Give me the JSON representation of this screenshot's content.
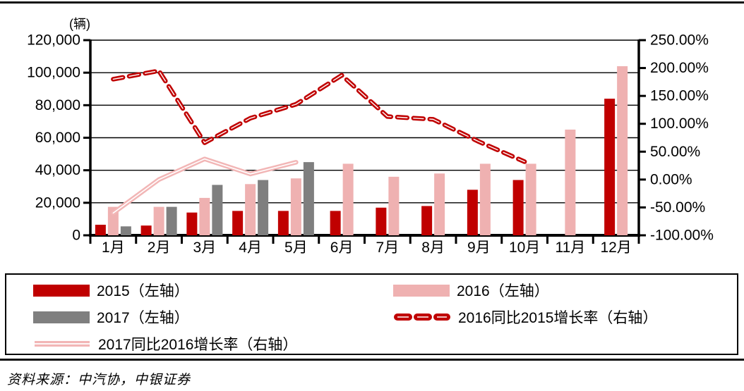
{
  "chart_data": {
    "type": "bar",
    "subtype": "grouped-bars-with-lines-dual-axis",
    "categories": [
      "1月",
      "2月",
      "3月",
      "4月",
      "5月",
      "6月",
      "7月",
      "8月",
      "9月",
      "10月",
      "11月",
      "12月"
    ],
    "unit_label": "(辆)",
    "left_axis": {
      "min": 0,
      "max": 120000,
      "tick_step": 20000,
      "tick_labels": [
        "0",
        "20,000",
        "40,000",
        "60,000",
        "80,000",
        "100,000",
        "120,000"
      ]
    },
    "right_axis": {
      "min": -100,
      "max": 250,
      "tick_step": 50,
      "tick_labels": [
        "-100.00%",
        "-50.00%",
        "0.00%",
        "50.00%",
        "100.00%",
        "150.00%",
        "200.00%",
        "250.00%"
      ]
    },
    "grid": true,
    "bar_series": [
      {
        "name": "2015（左轴）",
        "axis": "left",
        "color": "#C00000",
        "values": [
          6500,
          6000,
          14000,
          15000,
          15000,
          15000,
          17000,
          18000,
          28000,
          34000,
          null,
          84000
        ]
      },
      {
        "name": "2016（左轴）",
        "axis": "left",
        "color": "#EFB1B1",
        "values": [
          17500,
          17500,
          23000,
          31500,
          35000,
          44000,
          36000,
          38000,
          44000,
          44000,
          65000,
          104000
        ]
      },
      {
        "name": "2017（左轴）",
        "axis": "left",
        "color": "#7F7F7F",
        "values": [
          5500,
          17500,
          31000,
          34000,
          45000,
          null,
          null,
          null,
          null,
          null,
          null,
          null
        ]
      }
    ],
    "line_series": [
      {
        "name": "2016同比2015增长率（右轴）",
        "axis": "right",
        "style": "dashed",
        "color": "#C00000",
        "values_pct": [
          180,
          195,
          66,
          110,
          135,
          187,
          113,
          108,
          68,
          32,
          null,
          null
        ]
      },
      {
        "name": "2017同比2016增长率（右轴）",
        "axis": "right",
        "style": "solid",
        "color": "#F2B6B6",
        "values_pct": [
          -60,
          0,
          37,
          10,
          31,
          null,
          null,
          null,
          null,
          null,
          null,
          null
        ]
      }
    ],
    "legend_position": "bottom-box"
  },
  "legend": {
    "items": [
      {
        "label": "2015（左轴）",
        "marker": "bar",
        "color": "#C00000"
      },
      {
        "label": "2017（左轴）",
        "marker": "bar",
        "color": "#7F7F7F"
      },
      {
        "label": "2017同比2016增长率（右轴）",
        "marker": "line",
        "color": "#F2B6B6"
      },
      {
        "label": "2016（左轴）",
        "marker": "bar",
        "color": "#EFB1B1"
      },
      {
        "label": "2016同比2015增长率（右轴）",
        "marker": "dash",
        "color": "#C00000"
      }
    ]
  },
  "footer": {
    "source": "资料来源：中汽协，中银证券"
  }
}
